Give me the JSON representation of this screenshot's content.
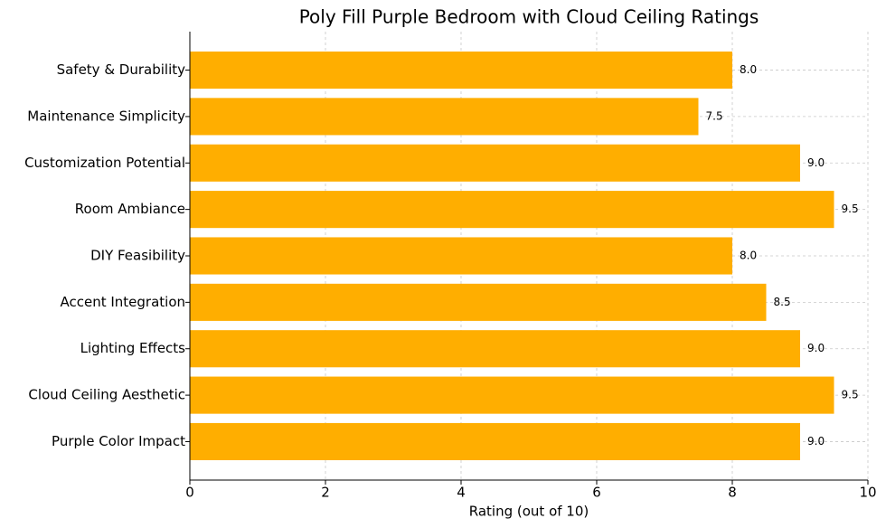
{
  "chart_data": {
    "type": "barh",
    "title": "Poly Fill Purple Bedroom with Cloud Ceiling Ratings",
    "x_label": "Rating (out of 10)",
    "categories": [
      "Safety & Durability",
      "Maintenance Simplicity",
      "Customization Potential",
      "Room Ambiance",
      "DIY Feasibility",
      "Accent Integration",
      "Lighting Effects",
      "Cloud Ceiling Aesthetic",
      "Purple Color Impact"
    ],
    "values": [
      8,
      7.5,
      9,
      9.5,
      8,
      8.5,
      9,
      9.5,
      9
    ],
    "value_labels": [
      "8.0",
      "7.5",
      "9.0",
      "9.5",
      "8.0",
      "8.5",
      "9.0",
      "9.5",
      "9.0"
    ],
    "color": "#ffae00",
    "xlim": [
      0,
      10
    ],
    "xticks": [
      0,
      2,
      4,
      6,
      8,
      10
    ],
    "grid": true
  }
}
